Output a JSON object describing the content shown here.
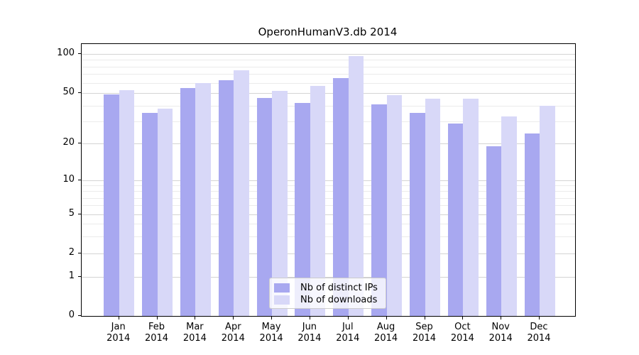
{
  "title": "OperonHumanV3.db 2014",
  "chart_data": {
    "type": "bar",
    "title": "OperonHumanV3.db 2014",
    "xlabel": "",
    "ylabel": "",
    "yscale": "symlog",
    "ylim": [
      0,
      110
    ],
    "grid": "both-horizontal",
    "y_ticks": [
      0,
      1,
      2,
      5,
      10,
      20,
      50,
      100
    ],
    "y_minor_ticks": [
      3,
      4,
      6,
      7,
      8,
      9,
      30,
      40,
      60,
      70,
      80,
      90
    ],
    "categories": [
      {
        "line1": "Jan",
        "line2": "2014"
      },
      {
        "line1": "Feb",
        "line2": "2014"
      },
      {
        "line1": "Mar",
        "line2": "2014"
      },
      {
        "line1": "Apr",
        "line2": "2014"
      },
      {
        "line1": "May",
        "line2": "2014"
      },
      {
        "line1": "Jun",
        "line2": "2014"
      },
      {
        "line1": "Jul",
        "line2": "2014"
      },
      {
        "line1": "Aug",
        "line2": "2014"
      },
      {
        "line1": "Sep",
        "line2": "2014"
      },
      {
        "line1": "Oct",
        "line2": "2014"
      },
      {
        "line1": "Nov",
        "line2": "2014"
      },
      {
        "line1": "Dec",
        "line2": "2014"
      }
    ],
    "series": [
      {
        "name": "Nb of distinct IPs",
        "color": "#a8a8f0",
        "values": [
          49,
          35,
          55,
          63,
          46,
          42,
          65,
          41,
          35,
          29,
          19,
          24
        ]
      },
      {
        "name": "Nb of downloads",
        "color": "#d8d8f8",
        "values": [
          53,
          38,
          60,
          75,
          52,
          57,
          96,
          48,
          45,
          45,
          33,
          40
        ]
      }
    ],
    "legend": {
      "position": "lower center",
      "entries": [
        "Nb of distinct IPs",
        "Nb of downloads"
      ]
    }
  }
}
